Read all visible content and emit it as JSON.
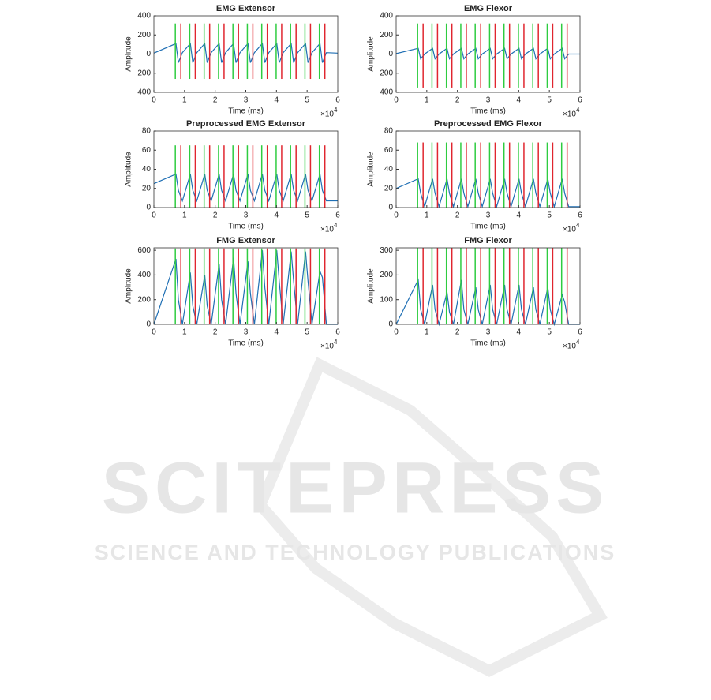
{
  "chart_data": [
    {
      "type": "line",
      "title": "EMG Extensor",
      "xlabel": "Time (ms)",
      "ylabel": "Amplitude",
      "x_offset_base": "×10",
      "x_offset_exponent": "4",
      "xlim": [
        0,
        6
      ],
      "xticks": [
        0,
        1,
        2,
        3,
        4,
        5,
        6
      ],
      "ylim": [
        -400,
        400
      ],
      "yticks": [
        -400,
        -200,
        0,
        200,
        400
      ],
      "x": [
        0,
        0.72,
        0.8,
        0.93,
        1.19,
        1.27,
        1.4,
        1.66,
        1.74,
        1.87,
        2.13,
        2.21,
        2.34,
        2.6,
        2.68,
        2.81,
        3.07,
        3.15,
        3.28,
        3.54,
        3.62,
        3.75,
        4.01,
        4.09,
        4.22,
        4.48,
        4.56,
        4.69,
        4.95,
        5.03,
        5.16,
        5.42,
        5.5,
        5.63,
        6
      ],
      "series": [
        {
          "color": "#1f6fb4",
          "values": [
            10,
            110,
            -90,
            15,
            110,
            -90,
            15,
            110,
            -90,
            15,
            110,
            -90,
            15,
            110,
            -90,
            15,
            110,
            -90,
            15,
            110,
            -90,
            15,
            110,
            -90,
            15,
            110,
            -90,
            15,
            110,
            -90,
            15,
            110,
            -90,
            15,
            10
          ]
        }
      ],
      "onsets": {
        "color": "#2ecc40",
        "x": [
          0.7,
          1.17,
          1.64,
          2.11,
          2.58,
          3.05,
          3.52,
          3.99,
          4.46,
          4.93,
          5.4
        ],
        "range": [
          -260,
          320
        ]
      },
      "offsets": {
        "color": "#e0262f",
        "x": [
          0.88,
          1.35,
          1.82,
          2.29,
          2.76,
          3.23,
          3.7,
          4.17,
          4.64,
          5.11,
          5.58
        ],
        "range": [
          -260,
          320
        ]
      }
    },
    {
      "type": "line",
      "title": "EMG Flexor",
      "xlabel": "Time (ms)",
      "ylabel": "Amplitude",
      "x_offset_base": "×10",
      "x_offset_exponent": "4",
      "xlim": [
        0,
        6
      ],
      "xticks": [
        0,
        1,
        2,
        3,
        4,
        5,
        6
      ],
      "ylim": [
        -400,
        400
      ],
      "yticks": [
        -400,
        -200,
        0,
        200,
        400
      ],
      "x": [
        0,
        0.72,
        0.8,
        0.93,
        1.19,
        1.27,
        1.4,
        1.66,
        1.74,
        1.87,
        2.13,
        2.21,
        2.34,
        2.6,
        2.68,
        2.81,
        3.07,
        3.15,
        3.28,
        3.54,
        3.62,
        3.75,
        4.01,
        4.09,
        4.22,
        4.48,
        4.56,
        4.69,
        4.95,
        5.03,
        5.16,
        5.42,
        5.5,
        5.63,
        6
      ],
      "series": [
        {
          "color": "#1f6fb4",
          "values": [
            5,
            60,
            -50,
            0,
            60,
            -50,
            0,
            60,
            -50,
            0,
            60,
            -50,
            0,
            60,
            -50,
            0,
            60,
            -50,
            0,
            60,
            -50,
            0,
            60,
            -50,
            0,
            60,
            -50,
            0,
            60,
            -50,
            0,
            60,
            -50,
            0,
            0
          ]
        }
      ],
      "onsets": {
        "color": "#2ecc40",
        "x": [
          0.7,
          1.17,
          1.64,
          2.11,
          2.58,
          3.05,
          3.52,
          3.99,
          4.46,
          4.93,
          5.4
        ],
        "range": [
          -350,
          320
        ]
      },
      "offsets": {
        "color": "#e0262f",
        "x": [
          0.88,
          1.35,
          1.82,
          2.29,
          2.76,
          3.23,
          3.7,
          4.17,
          4.64,
          5.11,
          5.58
        ],
        "range": [
          -350,
          320
        ]
      }
    },
    {
      "type": "line",
      "title": "Preprocessed EMG Extensor",
      "xlabel": "Time (ms)",
      "ylabel": "Amplitude",
      "x_offset_base": "×10",
      "x_offset_exponent": "4",
      "xlim": [
        0,
        6
      ],
      "xticks": [
        0,
        1,
        2,
        3,
        4,
        5,
        6
      ],
      "ylim": [
        0,
        80
      ],
      "yticks": [
        0,
        20,
        40,
        60,
        80
      ],
      "x": [
        0,
        0.72,
        0.8,
        0.93,
        1.19,
        1.27,
        1.4,
        1.66,
        1.74,
        1.87,
        2.13,
        2.21,
        2.34,
        2.6,
        2.68,
        2.81,
        3.07,
        3.15,
        3.28,
        3.54,
        3.62,
        3.75,
        4.01,
        4.09,
        4.22,
        4.48,
        4.56,
        4.69,
        4.95,
        5.03,
        5.16,
        5.42,
        5.5,
        5.63,
        6
      ],
      "series": [
        {
          "color": "#1f6fb4",
          "values": [
            25,
            35,
            18,
            7,
            35,
            18,
            7,
            35,
            18,
            7,
            35,
            18,
            7,
            35,
            18,
            7,
            35,
            18,
            7,
            35,
            18,
            7,
            35,
            18,
            7,
            35,
            18,
            7,
            35,
            18,
            7,
            35,
            18,
            7,
            7
          ]
        }
      ],
      "onsets": {
        "color": "#2ecc40",
        "x": [
          0.7,
          1.17,
          1.64,
          2.11,
          2.58,
          3.05,
          3.52,
          3.99,
          4.46,
          4.93,
          5.4
        ],
        "range": [
          0,
          65
        ]
      },
      "offsets": {
        "color": "#e0262f",
        "x": [
          0.88,
          1.35,
          1.82,
          2.29,
          2.76,
          3.23,
          3.7,
          4.17,
          4.64,
          5.11,
          5.58
        ],
        "range": [
          0,
          65
        ]
      }
    },
    {
      "type": "line",
      "title": "Preprocessed EMG Flexor",
      "xlabel": "Time (ms)",
      "ylabel": "Amplitude",
      "x_offset_base": "×10",
      "x_offset_exponent": "4",
      "xlim": [
        0,
        6
      ],
      "xticks": [
        0,
        1,
        2,
        3,
        4,
        5,
        6
      ],
      "ylim": [
        0,
        80
      ],
      "yticks": [
        0,
        20,
        40,
        60,
        80
      ],
      "x": [
        0,
        0.72,
        0.8,
        0.93,
        1.19,
        1.27,
        1.4,
        1.66,
        1.74,
        1.87,
        2.13,
        2.21,
        2.34,
        2.6,
        2.68,
        2.81,
        3.07,
        3.15,
        3.28,
        3.54,
        3.62,
        3.75,
        4.01,
        4.09,
        4.22,
        4.48,
        4.56,
        4.69,
        4.95,
        5.03,
        5.16,
        5.42,
        5.5,
        5.63,
        6
      ],
      "series": [
        {
          "color": "#1f6fb4",
          "values": [
            20,
            30,
            15,
            1,
            30,
            15,
            1,
            30,
            15,
            1,
            30,
            15,
            1,
            30,
            15,
            1,
            30,
            15,
            1,
            30,
            15,
            1,
            30,
            15,
            1,
            30,
            15,
            1,
            30,
            15,
            1,
            30,
            15,
            1,
            1
          ]
        }
      ],
      "onsets": {
        "color": "#2ecc40",
        "x": [
          0.7,
          1.17,
          1.64,
          2.11,
          2.58,
          3.05,
          3.52,
          3.99,
          4.46,
          4.93,
          5.4
        ],
        "range": [
          0,
          68
        ]
      },
      "offsets": {
        "color": "#e0262f",
        "x": [
          0.88,
          1.35,
          1.82,
          2.29,
          2.76,
          3.23,
          3.7,
          4.17,
          4.64,
          5.11,
          5.58
        ],
        "range": [
          0,
          68
        ]
      }
    },
    {
      "type": "line",
      "title": "FMG Extensor",
      "xlabel": "Time (ms)",
      "ylabel": "Amplitude",
      "x_offset_base": "×10",
      "x_offset_exponent": "4",
      "xlim": [
        0,
        6
      ],
      "xticks": [
        0,
        1,
        2,
        3,
        4,
        5,
        6
      ],
      "ylim": [
        0,
        620
      ],
      "yticks": [
        0,
        200,
        400,
        600
      ],
      "x": [
        0,
        0.72,
        0.8,
        0.93,
        1.19,
        1.27,
        1.4,
        1.66,
        1.74,
        1.87,
        2.13,
        2.21,
        2.34,
        2.6,
        2.68,
        2.81,
        3.07,
        3.15,
        3.28,
        3.54,
        3.62,
        3.75,
        4.01,
        4.09,
        4.22,
        4.48,
        4.56,
        4.69,
        4.95,
        5.03,
        5.16,
        5.42,
        5.5,
        5.63,
        6
      ],
      "series": [
        {
          "color": "#1f6fb4",
          "values": [
            0,
            530,
            200,
            0,
            420,
            150,
            0,
            400,
            150,
            0,
            490,
            200,
            0,
            540,
            250,
            0,
            510,
            250,
            0,
            600,
            300,
            0,
            600,
            350,
            0,
            590,
            350,
            0,
            590,
            350,
            0,
            430,
            380,
            0,
            0
          ]
        }
      ],
      "onsets": {
        "color": "#2ecc40",
        "x": [
          0.7,
          1.17,
          1.64,
          2.11,
          2.58,
          3.05,
          3.52,
          3.99,
          4.46,
          4.93,
          5.4
        ],
        "range": [
          0,
          615
        ]
      },
      "offsets": {
        "color": "#e0262f",
        "x": [
          0.88,
          1.35,
          1.82,
          2.29,
          2.76,
          3.23,
          3.7,
          4.17,
          4.64,
          5.11,
          5.58
        ],
        "range": [
          0,
          615
        ]
      }
    },
    {
      "type": "line",
      "title": "FMG Flexor",
      "xlabel": "Time (ms)",
      "ylabel": "Amplitude",
      "x_offset_base": "×10",
      "x_offset_exponent": "4",
      "xlim": [
        0,
        6
      ],
      "xticks": [
        0,
        1,
        2,
        3,
        4,
        5,
        6
      ],
      "ylim": [
        0,
        310
      ],
      "yticks": [
        0,
        100,
        200,
        300
      ],
      "x": [
        0,
        0.72,
        0.8,
        0.93,
        1.19,
        1.27,
        1.4,
        1.66,
        1.74,
        1.87,
        2.13,
        2.21,
        2.34,
        2.6,
        2.68,
        2.81,
        3.07,
        3.15,
        3.28,
        3.54,
        3.62,
        3.75,
        4.01,
        4.09,
        4.22,
        4.48,
        4.56,
        4.69,
        4.95,
        5.03,
        5.16,
        5.42,
        5.5,
        5.63,
        6
      ],
      "series": [
        {
          "color": "#1f6fb4",
          "values": [
            0,
            180,
            60,
            0,
            160,
            60,
            0,
            130,
            50,
            0,
            180,
            60,
            0,
            150,
            60,
            0,
            160,
            60,
            0,
            160,
            60,
            0,
            160,
            60,
            0,
            150,
            60,
            0,
            150,
            60,
            0,
            120,
            90,
            0,
            0
          ]
        }
      ],
      "onsets": {
        "color": "#2ecc40",
        "x": [
          0.7,
          1.17,
          1.64,
          2.11,
          2.58,
          3.05,
          3.52,
          3.99,
          4.46,
          4.93,
          5.4
        ],
        "range": [
          0,
          310
        ]
      },
      "offsets": {
        "color": "#e0262f",
        "x": [
          0.88,
          1.35,
          1.82,
          2.29,
          2.76,
          3.23,
          3.7,
          4.17,
          4.64,
          5.11,
          5.58
        ],
        "range": [
          0,
          310
        ]
      }
    }
  ],
  "watermark": {
    "brand": "SCITEPRESS",
    "tagline": "SCIENCE AND TECHNOLOGY PUBLICATIONS"
  }
}
